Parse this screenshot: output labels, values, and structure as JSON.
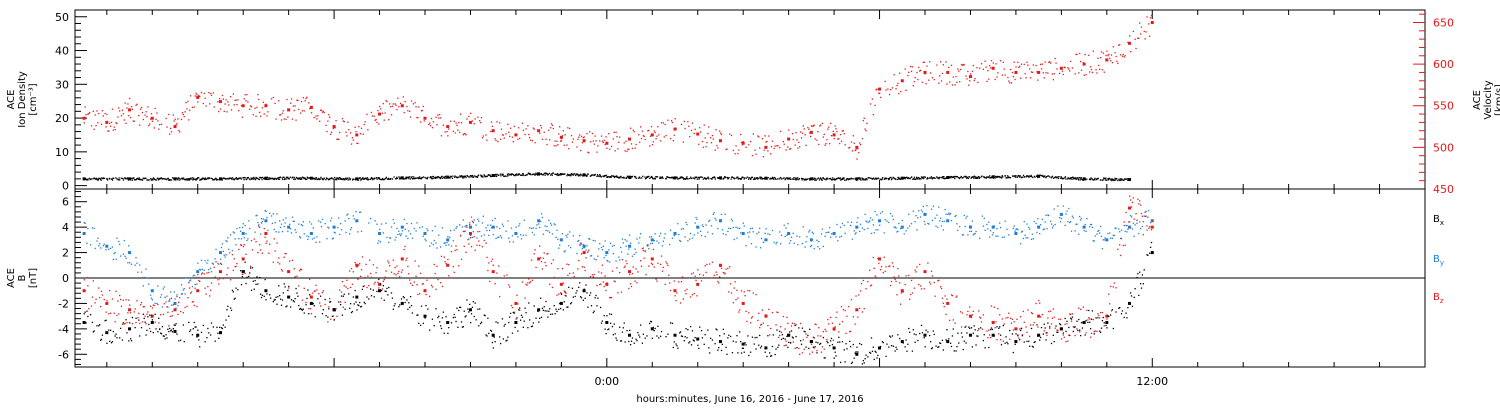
{
  "x_axis": {
    "title": "hours:minutes, June 16, 2016 - June 17, 2016",
    "tick_labels": [
      {
        "hour": 0,
        "label": "0:00"
      },
      {
        "hour": 12,
        "label": "12:00"
      }
    ],
    "range_hours": [
      -11.7,
      18.0
    ]
  },
  "colors": {
    "black": "#000000",
    "blue": "#1e7ed4",
    "red": "#e41a1a"
  },
  "chart_data": [
    {
      "type": "scatter",
      "panel": "top",
      "left_axis": {
        "label_lines": [
          "ACE",
          "Ion Density",
          "[cm⁻³]"
        ],
        "ylim": [
          -1,
          52
        ],
        "ticks": [
          0,
          10,
          20,
          30,
          40,
          50
        ]
      },
      "right_axis": {
        "label_lines": [
          "ACE",
          "Velocity",
          "[km/s]"
        ],
        "ylim": [
          450,
          665
        ],
        "ticks": [
          450,
          500,
          550,
          600,
          650
        ]
      },
      "series": [
        {
          "axis": "left",
          "color": "black",
          "x": [
            -11.5,
            -10.5,
            -9.5,
            -8.5,
            -7.5,
            -6.5,
            -5.5,
            -4.5,
            -3.5,
            -2.5,
            -1.5,
            -0.5,
            0.5,
            1.5,
            2.5,
            3.5,
            4.5,
            5.5,
            6.5,
            7.5,
            8.5,
            9.5,
            10.5,
            11.5
          ],
          "y": [
            2.0,
            2.0,
            2.0,
            2.0,
            2.2,
            2.2,
            2.0,
            2.3,
            2.5,
            3.0,
            3.5,
            3.2,
            2.5,
            2.3,
            2.3,
            2.2,
            2.0,
            2.0,
            2.2,
            2.4,
            2.6,
            2.8,
            2.0,
            1.8
          ]
        },
        {
          "axis": "right",
          "color": "red",
          "x": [
            -11.5,
            -11.0,
            -10.5,
            -10.0,
            -9.5,
            -9.0,
            -8.5,
            -8.0,
            -7.5,
            -7.0,
            -6.5,
            -6.0,
            -5.5,
            -5.0,
            -4.5,
            -4.0,
            -3.5,
            -3.0,
            -2.5,
            -2.0,
            -1.5,
            -1.0,
            -0.5,
            0.0,
            0.5,
            1.0,
            1.5,
            2.0,
            2.5,
            3.0,
            3.5,
            4.0,
            4.5,
            5.0,
            5.5,
            6.0,
            6.5,
            7.0,
            7.5,
            8.0,
            8.5,
            9.0,
            9.5,
            10.0,
            10.5,
            11.0,
            11.5,
            12.0
          ],
          "y": [
            535,
            530,
            545,
            535,
            525,
            560,
            555,
            550,
            550,
            545,
            548,
            525,
            515,
            540,
            550,
            535,
            525,
            530,
            520,
            515,
            520,
            512,
            508,
            505,
            510,
            515,
            522,
            516,
            508,
            505,
            500,
            510,
            518,
            515,
            500,
            570,
            580,
            590,
            590,
            585,
            595,
            590,
            590,
            595,
            600,
            605,
            625,
            650
          ]
        }
      ]
    },
    {
      "type": "scatter",
      "panel": "bottom",
      "left_axis": {
        "label_lines": [
          "ACE",
          "B",
          "[nT]"
        ],
        "ylim": [
          -7,
          7
        ],
        "ticks": [
          -6,
          -4,
          -2,
          0,
          2,
          4,
          6
        ]
      },
      "legend": [
        {
          "name": "B",
          "sub": "x",
          "color": "black"
        },
        {
          "name": "B",
          "sub": "y",
          "color": "blue"
        },
        {
          "name": "B",
          "sub": "z",
          "color": "red"
        }
      ],
      "zero_line": true,
      "series": [
        {
          "name": "Bx",
          "color": "black",
          "x": [
            -11.5,
            -11.0,
            -10.5,
            -10.0,
            -9.5,
            -9.0,
            -8.5,
            -8.0,
            -7.5,
            -7.0,
            -6.5,
            -6.0,
            -5.5,
            -5.0,
            -4.5,
            -4.0,
            -3.5,
            -3.0,
            -2.5,
            -2.0,
            -1.5,
            -1.0,
            -0.5,
            0.0,
            0.5,
            1.0,
            1.5,
            2.0,
            2.5,
            3.0,
            3.5,
            4.0,
            4.5,
            5.0,
            5.5,
            6.0,
            6.5,
            7.0,
            7.5,
            8.0,
            8.5,
            9.0,
            9.5,
            10.0,
            10.5,
            11.0,
            11.5,
            12.0
          ],
          "y": [
            -3.5,
            -4.3,
            -4.0,
            -3.5,
            -4.2,
            -4.5,
            -4.3,
            0.5,
            -1.0,
            -1.5,
            -2.0,
            -2.5,
            -1.5,
            -1.0,
            -2.0,
            -3.0,
            -3.5,
            -2.5,
            -4.5,
            -3.5,
            -2.5,
            -2.0,
            -1.0,
            -3.5,
            -4.5,
            -4.0,
            -4.5,
            -4.8,
            -5.0,
            -5.2,
            -5.5,
            -4.5,
            -5.0,
            -5.5,
            -6.0,
            -5.5,
            -5.0,
            -4.5,
            -5.0,
            -4.5,
            -4.5,
            -5.0,
            -4.5,
            -4.0,
            -3.5,
            -3.5,
            -2.0,
            2.0
          ]
        },
        {
          "name": "By",
          "color": "blue",
          "x": [
            -11.5,
            -11.0,
            -10.5,
            -10.0,
            -9.5,
            -9.0,
            -8.5,
            -8.0,
            -7.5,
            -7.0,
            -6.5,
            -6.0,
            -5.5,
            -5.0,
            -4.5,
            -4.0,
            -3.5,
            -3.0,
            -2.5,
            -2.0,
            -1.5,
            -1.0,
            -0.5,
            0.0,
            0.5,
            1.0,
            1.5,
            2.0,
            2.5,
            3.0,
            3.5,
            4.0,
            4.5,
            5.0,
            5.5,
            6.0,
            6.5,
            7.0,
            7.5,
            8.0,
            8.5,
            9.0,
            9.5,
            10.0,
            10.5,
            11.0,
            11.5,
            12.0
          ],
          "y": [
            3.5,
            2.5,
            2.0,
            -1.0,
            -2.0,
            0.5,
            2.0,
            3.5,
            4.5,
            4.0,
            3.5,
            4.0,
            4.5,
            3.5,
            4.0,
            3.5,
            3.0,
            4.0,
            4.0,
            3.5,
            4.5,
            3.0,
            2.5,
            2.0,
            2.5,
            3.0,
            3.5,
            4.0,
            4.5,
            3.5,
            3.0,
            3.5,
            3.0,
            3.5,
            4.0,
            4.5,
            4.0,
            5.0,
            4.5,
            4.0,
            4.0,
            3.5,
            4.0,
            5.0,
            4.0,
            3.0,
            4.0,
            4.5
          ]
        },
        {
          "name": "Bz",
          "color": "red",
          "x": [
            -11.5,
            -11.0,
            -10.5,
            -10.0,
            -9.5,
            -9.0,
            -8.5,
            -8.0,
            -7.5,
            -7.0,
            -6.5,
            -6.0,
            -5.5,
            -5.0,
            -4.5,
            -4.0,
            -3.5,
            -3.0,
            -2.5,
            -2.0,
            -1.5,
            -1.0,
            -0.5,
            0.0,
            0.5,
            1.0,
            1.5,
            2.0,
            2.5,
            3.0,
            3.5,
            4.0,
            4.5,
            5.0,
            5.5,
            6.0,
            6.5,
            7.0,
            7.5,
            8.0,
            8.5,
            9.0,
            9.5,
            10.0,
            10.5,
            11.0,
            11.5,
            12.0
          ],
          "y": [
            -1.0,
            -2.0,
            -2.5,
            -3.0,
            -2.5,
            -1.0,
            0.5,
            1.5,
            3.5,
            0.5,
            -1.5,
            -2.5,
            1.0,
            -0.5,
            1.5,
            -1.0,
            1.0,
            3.5,
            0.5,
            -2.0,
            1.5,
            -0.5,
            2.0,
            -0.5,
            0.5,
            1.5,
            -1.0,
            -0.5,
            1.0,
            -2.0,
            -3.0,
            -4.5,
            -5.0,
            -4.0,
            -2.5,
            1.5,
            -1.0,
            0.5,
            -2.0,
            -3.0,
            -3.5,
            -4.0,
            -3.0,
            -4.0,
            -3.5,
            -3.0,
            5.5,
            4.0
          ]
        }
      ]
    }
  ]
}
